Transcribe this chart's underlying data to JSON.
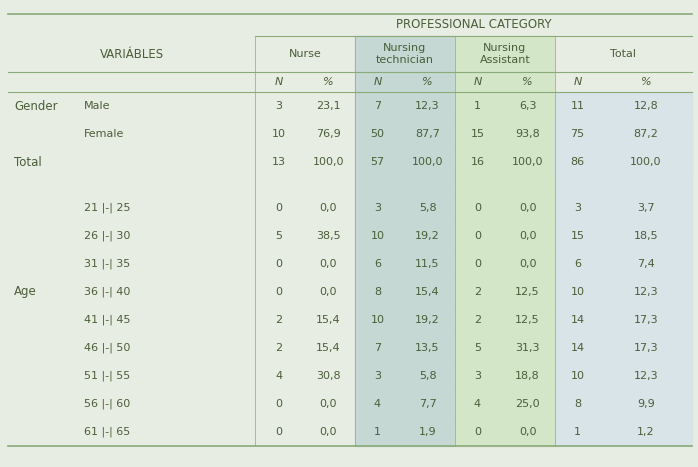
{
  "title": "PROFESSIONAL CATEGORY",
  "bg_color": "#e8ede4",
  "table_bg": "#e8ede4",
  "nurse_bg": "#e8ede4",
  "tech_bg": "#c5d8d4",
  "asst_bg": "#d4e6c8",
  "total_bg": "#dce8e0",
  "total_col_bg": "#d8e4e8",
  "text_color": "#4a5e38",
  "line_color": "#8aaa78",
  "rows": [
    [
      "Gender",
      "Male",
      "3",
      "23,1",
      "7",
      "12,3",
      "1",
      "6,3",
      "11",
      "12,8"
    ],
    [
      "",
      "Female",
      "10",
      "76,9",
      "50",
      "87,7",
      "15",
      "93,8",
      "75",
      "87,2"
    ],
    [
      "Total",
      "",
      "13",
      "100,0",
      "57",
      "100,0",
      "16",
      "100,0",
      "86",
      "100,0"
    ],
    [
      "",
      "",
      "",
      "",
      "",
      "",
      "",
      "",
      "",
      ""
    ],
    [
      "",
      "21 |-| 25",
      "0",
      "0,0",
      "3",
      "5,8",
      "0",
      "0,0",
      "3",
      "3,7"
    ],
    [
      "",
      "26 |-| 30",
      "5",
      "38,5",
      "10",
      "19,2",
      "0",
      "0,0",
      "15",
      "18,5"
    ],
    [
      "",
      "31 |-| 35",
      "0",
      "0,0",
      "6",
      "11,5",
      "0",
      "0,0",
      "6",
      "7,4"
    ],
    [
      "Age",
      "36 |-| 40",
      "0",
      "0,0",
      "8",
      "15,4",
      "2",
      "12,5",
      "10",
      "12,3"
    ],
    [
      "",
      "41 |-| 45",
      "2",
      "15,4",
      "10",
      "19,2",
      "2",
      "12,5",
      "14",
      "17,3"
    ],
    [
      "",
      "46 |-| 50",
      "2",
      "15,4",
      "7",
      "13,5",
      "5",
      "31,3",
      "14",
      "17,3"
    ],
    [
      "",
      "51 |-| 55",
      "4",
      "30,8",
      "3",
      "5,8",
      "3",
      "18,8",
      "10",
      "12,3"
    ],
    [
      "",
      "56 |-| 60",
      "0",
      "0,0",
      "4",
      "7,7",
      "4",
      "25,0",
      "8",
      "9,9"
    ],
    [
      "",
      "61 |-| 65",
      "0",
      "0,0",
      "1",
      "1,9",
      "0",
      "0,0",
      "1",
      "1,2"
    ]
  ]
}
